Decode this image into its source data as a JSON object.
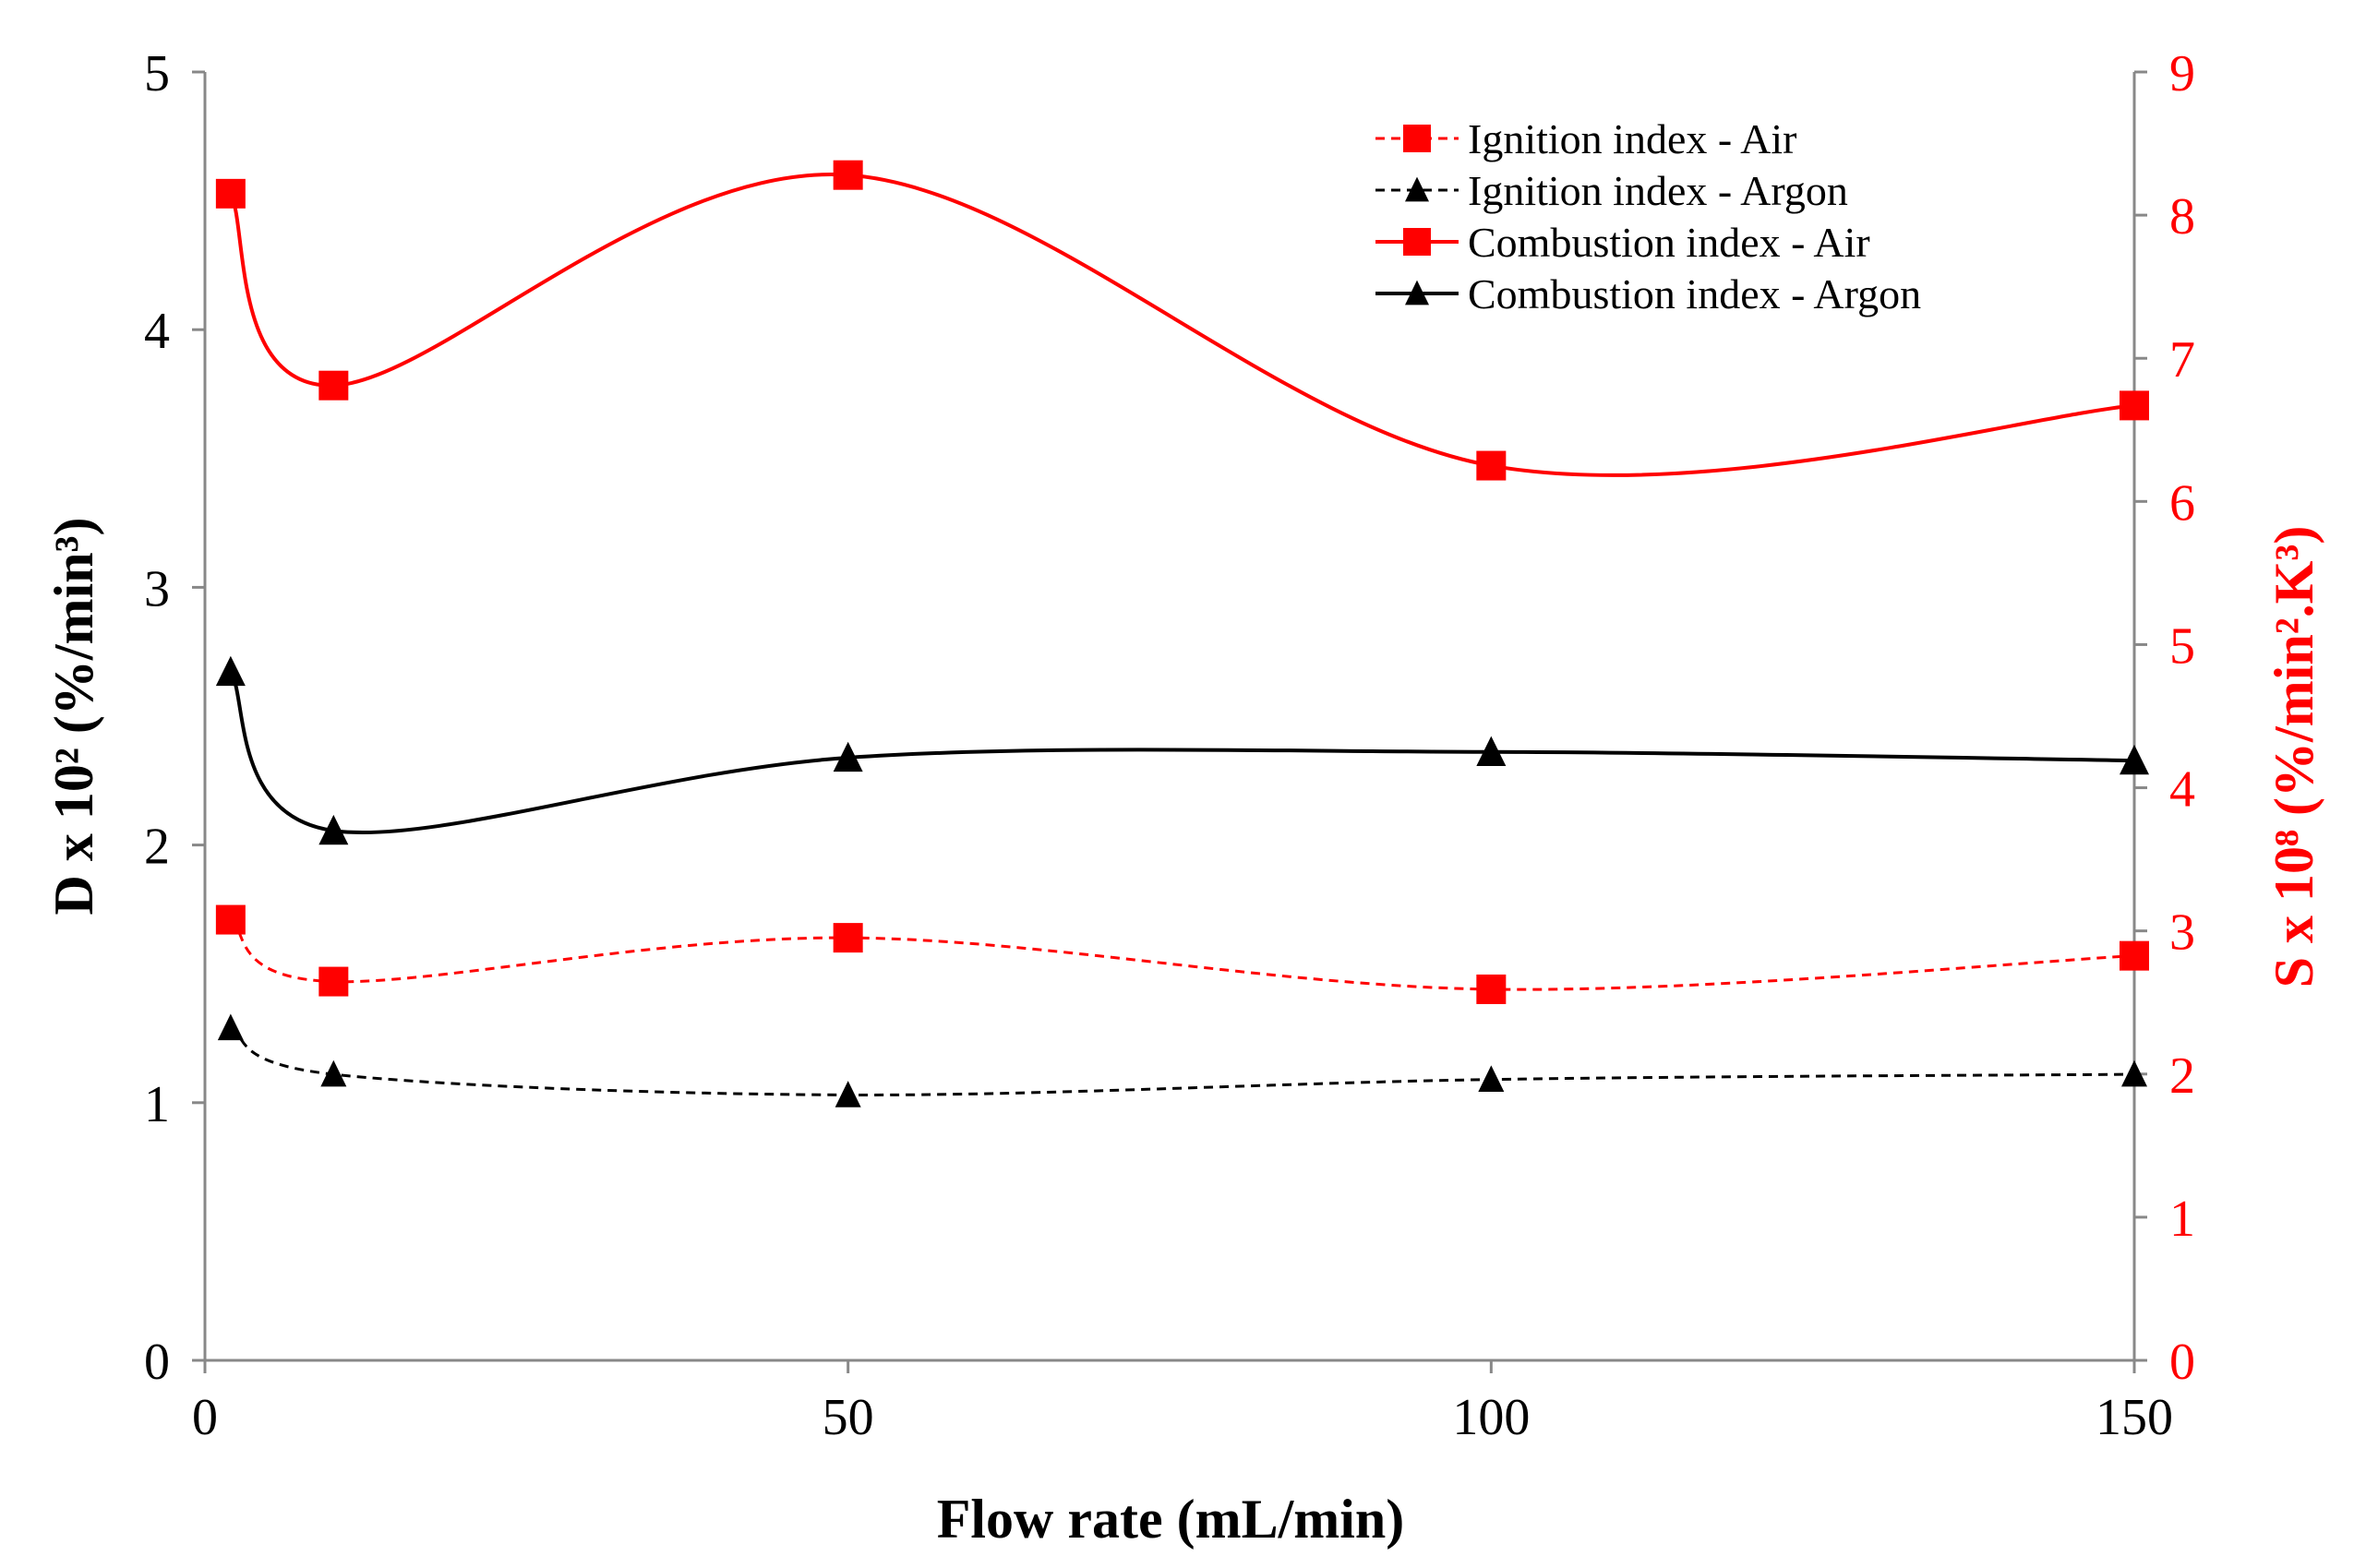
{
  "chart_data": {
    "type": "line",
    "title": "",
    "xlabel": "Flow rate (mL/min)",
    "ylabel_left": "D x 10² (%/min³)",
    "ylabel_right": "S x 10⁸ (%/min².K³)",
    "xlim": [
      0,
      150
    ],
    "ylim_left": [
      0,
      5
    ],
    "ylim_right": [
      0,
      9
    ],
    "x_ticks": [
      0,
      50,
      100,
      150
    ],
    "y_left_ticks": [
      0,
      1,
      2,
      3,
      4,
      5
    ],
    "y_right_ticks": [
      0,
      1,
      2,
      3,
      4,
      5,
      6,
      7,
      8,
      9
    ],
    "x": [
      2,
      10,
      50,
      100,
      150
    ],
    "grid": false,
    "legend_position": "top-right",
    "colors": {
      "red": "#ff0000",
      "black": "#000000"
    },
    "series": [
      {
        "name": "Ignition index - Air",
        "axis": "left",
        "color": "#ff0000",
        "dash": true,
        "marker": "square",
        "values": [
          1.71,
          1.47,
          1.64,
          1.44,
          1.57
        ]
      },
      {
        "name": "Ignition index - Argon",
        "axis": "left",
        "color": "#000000",
        "dash": true,
        "marker": "triangle",
        "values": [
          1.29,
          1.11,
          1.03,
          1.09,
          1.11
        ]
      },
      {
        "name": "Combustion index - Air",
        "axis": "right",
        "color": "#ff0000",
        "dash": false,
        "marker": "square",
        "values": [
          8.15,
          6.81,
          8.28,
          6.25,
          6.67
        ]
      },
      {
        "name": "Combustion index - Argon",
        "axis": "right",
        "color": "#000000",
        "dash": false,
        "marker": "triangle",
        "values": [
          4.81,
          3.7,
          4.21,
          4.25,
          4.19
        ]
      }
    ]
  }
}
